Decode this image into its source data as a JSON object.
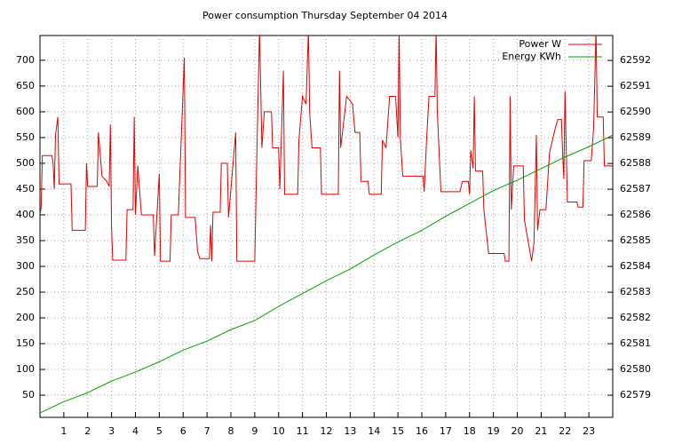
{
  "chart_data": {
    "type": "line",
    "title": "Power consumption Thursday September 04 2014",
    "xlim": [
      0,
      24
    ],
    "xticks": [
      1,
      2,
      3,
      4,
      5,
      6,
      7,
      8,
      9,
      10,
      11,
      12,
      13,
      14,
      15,
      16,
      17,
      18,
      19,
      20,
      21,
      22,
      23
    ],
    "ylim": [
      7,
      748
    ],
    "yticks": [
      50,
      100,
      150,
      200,
      250,
      300,
      350,
      400,
      450,
      500,
      550,
      600,
      650,
      700
    ],
    "y2lim": [
      62578.14,
      62592.97
    ],
    "y2ticks": [
      62579,
      62580,
      62581,
      62582,
      62583,
      62584,
      62585,
      62586,
      62587,
      62588,
      62589,
      62590,
      62591,
      62592
    ],
    "grid": true,
    "legend": "top-right",
    "series": [
      {
        "name": "Power W",
        "color": "#e00000",
        "x": [
          0.0,
          0.05,
          0.1,
          0.5,
          0.55,
          0.6,
          0.65,
          0.75,
          0.8,
          1.3,
          1.35,
          1.9,
          1.95,
          2.0,
          2.4,
          2.45,
          2.6,
          2.8,
          2.9,
          2.95,
          3.0,
          3.05,
          3.6,
          3.65,
          3.9,
          3.95,
          4.0,
          4.1,
          4.25,
          4.75,
          4.8,
          5.0,
          5.05,
          5.45,
          5.5,
          5.8,
          5.85,
          6.05,
          6.1,
          6.5,
          6.6,
          6.7,
          7.1,
          7.15,
          7.2,
          7.25,
          7.55,
          7.6,
          7.85,
          7.9,
          8.2,
          8.25,
          9.0,
          9.05,
          9.1,
          9.2,
          9.3,
          9.4,
          9.7,
          9.75,
          10.0,
          10.05,
          10.2,
          10.25,
          10.8,
          10.85,
          11.0,
          11.15,
          11.25,
          11.3,
          11.4,
          11.75,
          11.8,
          12.5,
          12.55,
          12.6,
          12.85,
          13.1,
          13.2,
          13.4,
          13.45,
          13.75,
          13.8,
          14.3,
          14.35,
          14.5,
          14.65,
          14.9,
          15.0,
          15.05,
          15.1,
          15.2,
          16.05,
          16.1,
          16.2,
          16.3,
          16.55,
          16.6,
          16.65,
          16.8,
          17.6,
          17.7,
          17.95,
          18.0,
          18.05,
          18.15,
          18.2,
          18.25,
          18.55,
          18.6,
          18.8,
          19.45,
          19.5,
          19.65,
          19.7,
          19.75,
          19.85,
          20.25,
          20.3,
          20.6,
          20.7,
          20.8,
          20.85,
          20.95,
          21.2,
          21.35,
          21.6,
          21.7,
          21.85,
          21.9,
          21.95,
          22.0,
          22.1,
          22.5,
          22.55,
          22.75,
          22.8,
          23.1,
          23.2,
          23.3,
          23.35,
          23.6,
          23.65,
          23.75,
          24.0
        ],
        "values": [
          400,
          415,
          515,
          515,
          500,
          450,
          555,
          590,
          460,
          460,
          370,
          370,
          500,
          455,
          455,
          560,
          475,
          465,
          455,
          575,
          375,
          312,
          312,
          410,
          410,
          590,
          400,
          495,
          400,
          400,
          320,
          480,
          310,
          310,
          400,
          400,
          465,
          705,
          395,
          395,
          330,
          315,
          315,
          380,
          310,
          405,
          405,
          500,
          500,
          395,
          560,
          310,
          310,
          430,
          545,
          760,
          530,
          600,
          600,
          530,
          530,
          450,
          680,
          440,
          440,
          545,
          630,
          615,
          760,
          600,
          530,
          530,
          440,
          440,
          680,
          530,
          630,
          615,
          560,
          560,
          465,
          465,
          440,
          440,
          545,
          530,
          630,
          630,
          550,
          760,
          550,
          475,
          475,
          445,
          545,
          630,
          630,
          760,
          600,
          445,
          445,
          465,
          465,
          440,
          525,
          490,
          630,
          485,
          485,
          410,
          325,
          325,
          310,
          310,
          630,
          410,
          495,
          495,
          390,
          310,
          345,
          555,
          370,
          410,
          410,
          520,
          570,
          585,
          585,
          520,
          470,
          640,
          425,
          425,
          415,
          415,
          505,
          505,
          570,
          760,
          590,
          590,
          495,
          495,
          495
        ]
      },
      {
        "name": "Energy KWh",
        "color": "#00a000",
        "axis": "y2",
        "x": [
          0,
          1,
          2,
          3,
          4,
          5,
          6,
          7,
          8,
          9,
          10,
          11,
          12,
          13,
          14,
          15,
          16,
          17,
          18,
          19,
          20,
          21,
          22,
          23,
          24
        ],
        "values": [
          62578.31,
          62578.75,
          62579.1,
          62579.55,
          62579.9,
          62580.3,
          62580.75,
          62581.1,
          62581.55,
          62581.9,
          62582.45,
          62582.95,
          62583.45,
          62583.9,
          62584.45,
          62584.95,
          62585.4,
          62585.95,
          62586.45,
          62586.95,
          62587.35,
          62587.8,
          62588.25,
          62588.65,
          62589.1
        ]
      }
    ]
  }
}
